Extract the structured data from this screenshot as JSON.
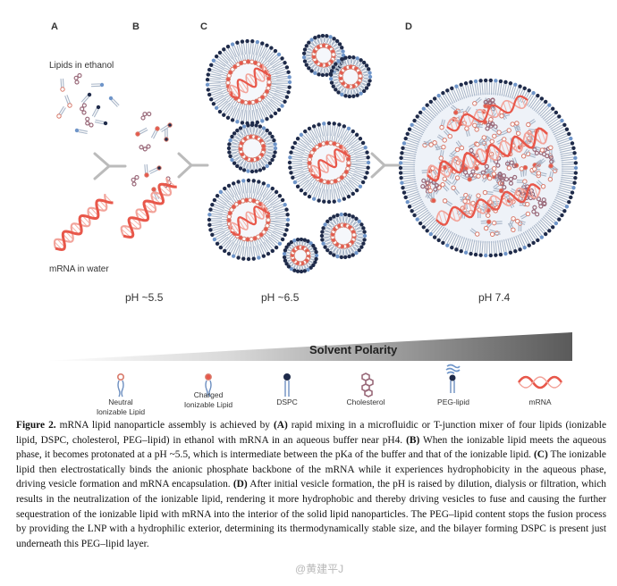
{
  "figure": {
    "panels": [
      {
        "letter": "A",
        "top_label": "Lipids in ethanol",
        "bottom_label": "mRNA in water"
      },
      {
        "letter": "B",
        "ph": "pH ~5.5"
      },
      {
        "letter": "C",
        "ph": "pH ~6.5"
      },
      {
        "letter": "D",
        "ph": "pH 7.4"
      }
    ],
    "polarity_label": "Solvent Polarity",
    "legend": [
      {
        "line1": "Neutral",
        "line2": "Ionizable Lipid",
        "icon": "neutral-ionizable-lipid-icon"
      },
      {
        "line1": "Charged",
        "line2": "Ionizable Lipid",
        "icon": "charged-ionizable-lipid-icon"
      },
      {
        "line1": "DSPC",
        "line2": "",
        "icon": "dspc-icon"
      },
      {
        "line1": "Cholesterol",
        "line2": "",
        "icon": "cholesterol-icon"
      },
      {
        "line1": "PEG-lipid",
        "line2": "",
        "icon": "peg-lipid-icon"
      },
      {
        "line1": "mRNA",
        "line2": "",
        "icon": "mrna-icon"
      }
    ],
    "colors": {
      "mrna": "#e8574a",
      "dspc": "#1f2b4a",
      "peg": "#6f95c9",
      "cholesterol": "#9a6a7a",
      "lipid_tail": "#a9b6c8"
    }
  },
  "caption": {
    "label": "Figure 2.",
    "text": [
      {
        "t": " mRNA lipid nanoparticle assembly is achieved by ",
        "b": false
      },
      {
        "t": "(A)",
        "b": true
      },
      {
        "t": " rapid mixing in a microfluidic or T-junction mixer of four lipids (ionizable lipid, DSPC, cholesterol, PEG–lipid) in ethanol with mRNA in an aqueous buffer near pH4. ",
        "b": false
      },
      {
        "t": "(B)",
        "b": true
      },
      {
        "t": " When the ionizable lipid meets the aqueous phase, it becomes protonated at a pH ~5.5, which is intermediate between the pKa of the buffer and that of the ionizable lipid. ",
        "b": false
      },
      {
        "t": "(C)",
        "b": true
      },
      {
        "t": " The ionizable lipid then electrostatically binds the anionic phosphate backbone of the mRNA while it experiences hydrophobicity in the aqueous phase, driving vesicle formation and mRNA encapsulation. ",
        "b": false
      },
      {
        "t": "(D)",
        "b": true
      },
      {
        "t": " After initial vesicle formation, the pH is raised by dilution, dialysis or filtration, which results in the neutralization of the ionizable lipid, rendering it more hydrophobic and thereby driving vesicles to fuse and causing the further sequestration of the ionizable lipid with mRNA into the interior of the solid lipid nanoparticles. The PEG–lipid content stops the fusion process by providing the LNP with a hydrophilic exterior, determining its thermodynamically stable size, and the bilayer forming DSPC is present just underneath this PEG–lipid layer.",
        "b": false
      }
    ]
  },
  "watermark": "@黄建平J"
}
